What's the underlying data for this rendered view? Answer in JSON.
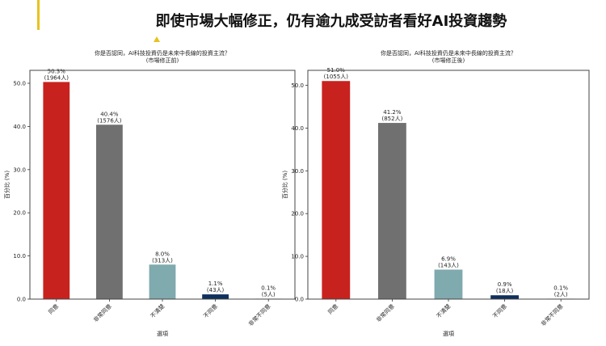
{
  "page_title": "即使市場大幅修正，仍有逾九成受訪者看好AI投資趨勢",
  "colors": [
    "#c8221e",
    "#707070",
    "#7faaae",
    "#0f2f5c",
    "#8b1a1a"
  ],
  "chart_data": [
    {
      "type": "bar",
      "title": "你是否認同，AI科技投資仍是未來中長線的投資主流？",
      "subtitle": "(市場修正前)",
      "xlabel": "選項",
      "ylabel": "百分比 (%)",
      "ylim": [
        0,
        53
      ],
      "yticks": [
        "0.0",
        "10.0",
        "20.0",
        "30.0",
        "40.0",
        "50.0"
      ],
      "categories": [
        "同意",
        "非常同意",
        "不清楚",
        "不同意",
        "非常不同意"
      ],
      "values": [
        50.3,
        40.4,
        8.0,
        1.1,
        0.1
      ],
      "labels": [
        "50.3%",
        "40.4%",
        "8.0%",
        "1.1%",
        "0.1%"
      ],
      "counts": [
        "(1964人)",
        "(1576人)",
        "(313人)",
        "(43人)",
        "(5人)"
      ]
    },
    {
      "type": "bar",
      "title": "你是否認同，AI科技投資仍是未來中長線的投資主流？",
      "subtitle": "(市場修正後)",
      "xlabel": "選項",
      "ylabel": "百分比 (%)",
      "ylim": [
        0,
        53.5
      ],
      "yticks": [
        "0.0",
        "10.0",
        "20.0",
        "30.0",
        "40.0",
        "50.0"
      ],
      "categories": [
        "同意",
        "非常同意",
        "不清楚",
        "不同意",
        "非常不同意"
      ],
      "values": [
        51.0,
        41.2,
        6.9,
        0.9,
        0.1
      ],
      "labels": [
        "51.0%",
        "41.2%",
        "6.9%",
        "0.9%",
        "0.1%"
      ],
      "counts": [
        "(1055人)",
        "(852人)",
        "(143人)",
        "(18人)",
        "(2人)"
      ]
    }
  ]
}
